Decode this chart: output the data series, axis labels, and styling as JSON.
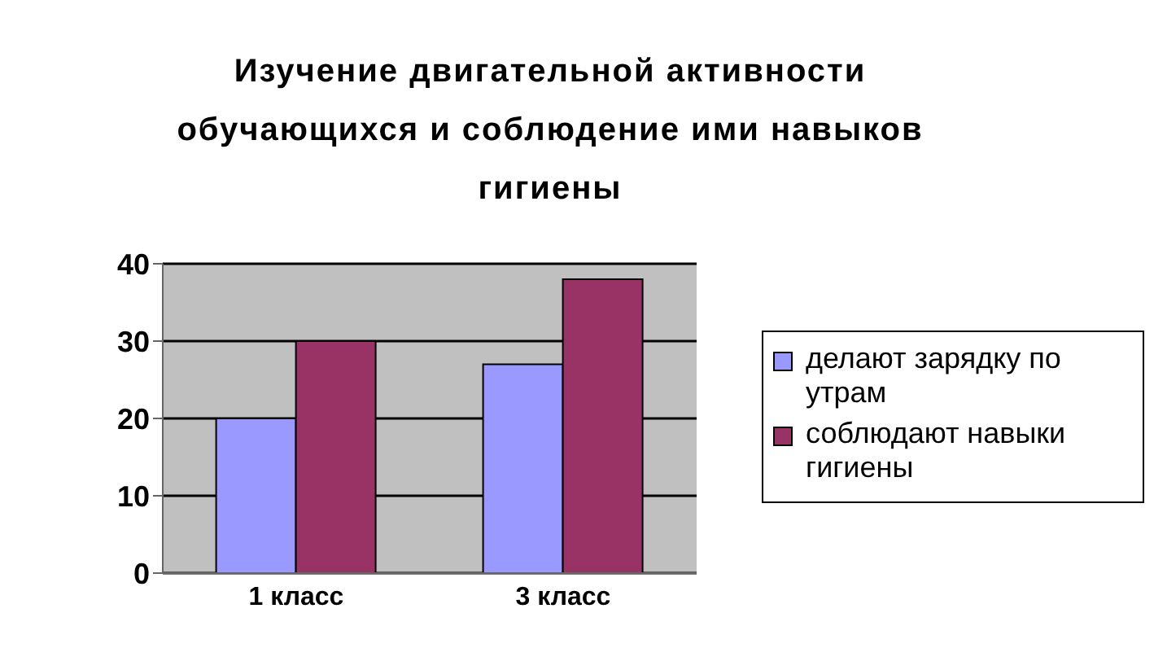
{
  "chart_data": {
    "type": "bar",
    "title": "Изучение двигательной активности обучающихся и соблюдение ими навыков гигиены",
    "categories": [
      "1 класс",
      "3 класс"
    ],
    "series": [
      {
        "name": "делают зарядку по утрам",
        "color": "#9999ff",
        "values": [
          20,
          27
        ]
      },
      {
        "name": "соблюдают навыки гигиены",
        "color": "#993366",
        "values": [
          30,
          38
        ]
      }
    ],
    "ylim": [
      0,
      40
    ],
    "yticks": [
      0,
      10,
      20,
      30,
      40
    ],
    "grid": "y",
    "legend": "right"
  }
}
